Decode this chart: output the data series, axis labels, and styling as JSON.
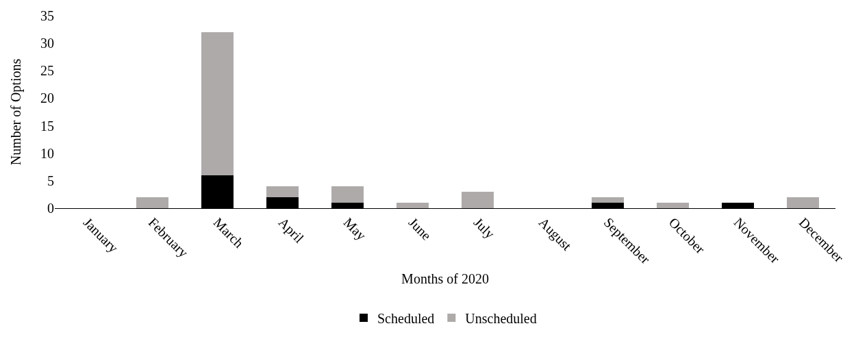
{
  "chart_data": {
    "type": "bar",
    "stacked": true,
    "xlabel": "Months of 2020",
    "ylabel": "Number of Options",
    "categories": [
      "January",
      "February",
      "March",
      "April",
      "May",
      "June",
      "July",
      "August",
      "September",
      "October",
      "November",
      "December"
    ],
    "series": [
      {
        "name": "Scheduled",
        "color": "#000000",
        "values": [
          0,
          0,
          6,
          2,
          1,
          0,
          0,
          0,
          1,
          0,
          1,
          0
        ]
      },
      {
        "name": "Unscheduled",
        "color": "#aeaaaa",
        "values": [
          0,
          2,
          26,
          2,
          3,
          1,
          3,
          0,
          1,
          1,
          0,
          2
        ]
      }
    ],
    "ylim": [
      0,
      35
    ],
    "yticks": [
      0,
      5,
      10,
      15,
      20,
      25,
      30,
      35
    ],
    "grid": false,
    "legend": "bottom"
  }
}
